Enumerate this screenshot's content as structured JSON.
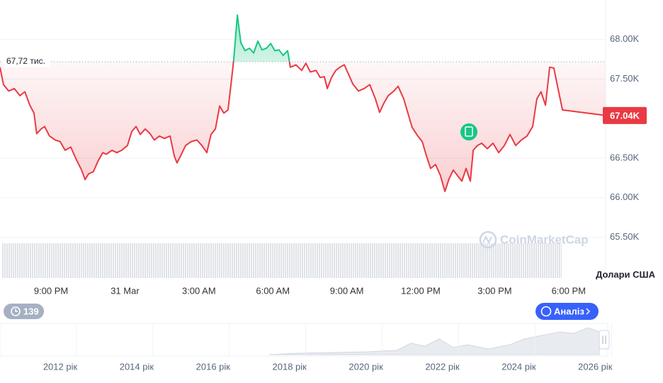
{
  "chart_data": {
    "type": "line",
    "x": [
      18.93,
      19.07,
      19.28,
      19.51,
      19.74,
      19.94,
      20.14,
      20.31,
      20.42,
      20.6,
      20.74,
      20.94,
      21.17,
      21.37,
      21.57,
      21.8,
      22.03,
      22.24,
      22.38,
      22.52,
      22.72,
      22.9,
      23.1,
      23.24,
      23.47,
      23.67,
      23.87,
      24.1,
      24.28,
      24.45,
      24.62,
      24.82,
      25.02,
      25.19,
      25.4,
      25.6,
      25.83,
      26.0,
      26.11,
      26.29,
      26.46,
      26.69,
      26.92,
      27.12,
      27.32,
      27.49,
      27.67,
      27.84,
      28.01,
      28.18,
      28.3,
      28.41,
      28.56,
      28.7,
      28.87,
      29.05,
      29.22,
      29.39,
      29.56,
      29.74,
      29.91,
      30.08,
      30.25,
      30.42,
      30.6,
      30.71,
      30.94,
      31.17,
      31.34,
      31.52,
      31.75,
      31.92,
      32.09,
      32.21,
      32.38,
      32.55,
      32.72,
      32.9,
      33.07,
      33.24,
      33.47,
      33.7,
      33.93,
      34.16,
      34.33,
      34.51,
      34.68,
      34.91,
      35.08,
      35.31,
      35.48,
      35.65,
      35.88,
      36.06,
      36.23,
      36.4,
      36.6,
      36.8,
      36.98,
      37.15,
      37.32,
      37.49,
      37.67,
      37.84,
      38.01,
      38.13,
      38.3,
      38.47,
      38.7,
      38.93,
      39.16,
      39.39,
      39.62,
      39.85,
      40.08,
      40.31,
      40.54,
      40.71,
      40.88,
      41.06,
      41.23,
      41.4,
      41.57,
      41.75,
      43.5
    ],
    "values": [
      67650,
      67430,
      67350,
      67380,
      67290,
      67340,
      67170,
      67070,
      66810,
      66870,
      66900,
      66780,
      66730,
      66710,
      66600,
      66640,
      66480,
      66350,
      66230,
      66300,
      66330,
      66460,
      66570,
      66550,
      66600,
      66570,
      66600,
      66660,
      66840,
      66900,
      66800,
      66870,
      66810,
      66730,
      66780,
      66750,
      66780,
      66530,
      66440,
      66550,
      66660,
      66710,
      66730,
      66660,
      66570,
      66800,
      66870,
      67160,
      67070,
      67110,
      67430,
      67740,
      68310,
      67960,
      67860,
      67890,
      67830,
      67980,
      67870,
      67890,
      67950,
      67860,
      67870,
      67800,
      67860,
      67650,
      67680,
      67610,
      67700,
      67590,
      67610,
      67520,
      67530,
      67380,
      67520,
      67610,
      67650,
      67680,
      67560,
      67440,
      67350,
      67380,
      67430,
      67250,
      67080,
      67200,
      67290,
      67350,
      67410,
      67250,
      67070,
      66890,
      66780,
      66710,
      66530,
      66370,
      66420,
      66280,
      66080,
      66240,
      66350,
      66280,
      66210,
      66370,
      66210,
      66600,
      66660,
      66690,
      66620,
      66690,
      66570,
      66660,
      66800,
      66660,
      66730,
      66780,
      66900,
      67250,
      67340,
      67170,
      67650,
      67640,
      67380,
      67110,
      67040
    ],
    "color_above": "#16c784",
    "color_below": "#ea3943",
    "reference": {
      "value": 67720,
      "label": "67,72 тис."
    },
    "current_price": {
      "value": 67040,
      "label": "67.04K"
    },
    "xlim": [
      18.93,
      43.5
    ],
    "xticks": [
      {
        "value": 21,
        "label": "9:00 PM"
      },
      {
        "value": 24,
        "label": "31 Mar"
      },
      {
        "value": 27,
        "label": "3:00 AM"
      },
      {
        "value": 30,
        "label": "6:00 AM"
      },
      {
        "value": 33,
        "label": "9:00 AM"
      },
      {
        "value": 36,
        "label": "12:00 PM"
      },
      {
        "value": 39,
        "label": "3:00 PM"
      },
      {
        "value": 42,
        "label": "6:00 PM"
      }
    ],
    "ylim": [
      64985,
      68500
    ],
    "yticks": [
      {
        "value": 68000,
        "label": "68.00K"
      },
      {
        "value": 67500,
        "label": "67.50K"
      },
      {
        "value": 66500,
        "label": "66.50K"
      },
      {
        "value": 66000,
        "label": "66.00K"
      },
      {
        "value": 65500,
        "label": "65.50K"
      }
    ],
    "grid": true,
    "y_axis_label": "Долари США",
    "watermark": "CoinMarketCap"
  },
  "controls": {
    "history_badge": "139",
    "analysis_button": "Аналіз"
  },
  "navigator": {
    "years": [
      "2012 рік",
      "2014 рік",
      "2016 рік",
      "2018 рік",
      "2020 рік",
      "2022 рік",
      "2024 рік",
      "2026 рік"
    ]
  }
}
